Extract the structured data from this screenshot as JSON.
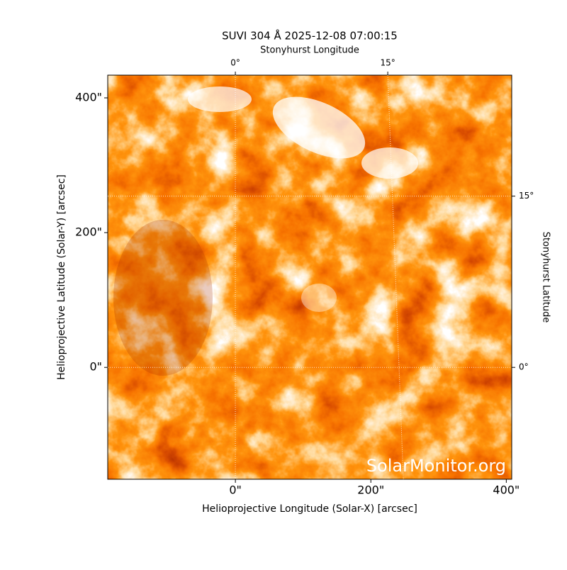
{
  "chart_data": {
    "type": "image",
    "title": "SUVI 304 Å 2025-12-08 07:00:15",
    "xlabel": "Helioprojective Longitude (Solar-X) [arcsec]",
    "ylabel": "Helioprojective Latitude (Solar-Y) [arcsec]",
    "top_xlabel": "Stonyhurst Longitude",
    "right_ylabel": "Stonyhurst Latitude",
    "annotation": "SolarMonitor.org",
    "xlim": [
      -188.5,
      408
    ],
    "ylim": [
      -166,
      433.7
    ],
    "xticks": [
      {
        "value": 0,
        "label": "0\""
      },
      {
        "value": 200,
        "label": "200\""
      },
      {
        "value": 400,
        "label": "400\""
      }
    ],
    "yticks": [
      {
        "value": 0,
        "label": "0\""
      },
      {
        "value": 200,
        "label": "200\""
      },
      {
        "value": 400,
        "label": "400\""
      }
    ],
    "top_xlim": [
      -12.56,
      27.2
    ],
    "top_xticks": [
      {
        "value": 0,
        "label": "0°"
      },
      {
        "value": 15,
        "label": "15°"
      }
    ],
    "right_ylim": [
      -9.8,
      25.6
    ],
    "right_yticks": [
      {
        "value": 0,
        "label": "0°"
      },
      {
        "value": 15,
        "label": "15°"
      }
    ],
    "grid": true
  }
}
